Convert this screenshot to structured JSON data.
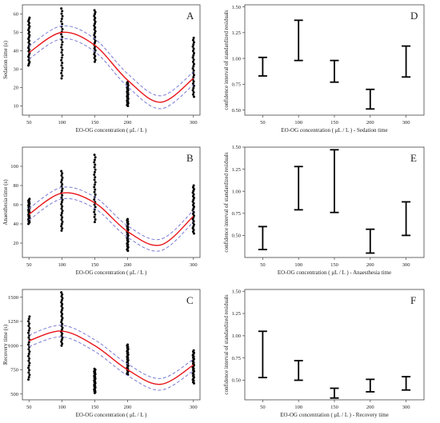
{
  "colors": {
    "fit": "#e8141b",
    "ci": "#7b7bd6",
    "points": "#000000",
    "interval": "#000000"
  },
  "chart_data": [
    {
      "type": "scatter",
      "panel_label": "A",
      "xlabel": "EO-OG concentration ( μL / L )",
      "ylabel": "Sedation time (s)",
      "xticks": [
        "50",
        "100",
        "150",
        "200",
        "300"
      ],
      "x_values": [
        50,
        100,
        150,
        200,
        300
      ],
      "xlim": [
        40,
        310
      ],
      "yticks": [
        10,
        20,
        30,
        40,
        50,
        60
      ],
      "ylim": [
        5,
        65
      ],
      "points": [
        {
          "x": 50,
          "min": 32,
          "max": 58
        },
        {
          "x": 100,
          "min": 25,
          "max": 63
        },
        {
          "x": 150,
          "min": 34,
          "max": 62
        },
        {
          "x": 200,
          "min": 10,
          "max": 23
        },
        {
          "x": 300,
          "min": 15,
          "max": 47
        }
      ],
      "fit_curve": {
        "x": [
          50,
          100,
          150,
          200,
          250,
          300
        ],
        "y": [
          39,
          50,
          43,
          24,
          12,
          25
        ]
      },
      "ci_halfwidth": 3.5
    },
    {
      "type": "scatter",
      "panel_label": "B",
      "xlabel": "EO-OG concentration ( μL / L )",
      "ylabel": "Anaesthesia time (s)",
      "xticks": [
        "50",
        "100",
        "150",
        "200",
        "300"
      ],
      "x_values": [
        50,
        100,
        150,
        200,
        300
      ],
      "xlim": [
        40,
        310
      ],
      "yticks": [
        20,
        40,
        60,
        80,
        100
      ],
      "ylim": [
        5,
        120
      ],
      "points": [
        {
          "x": 50,
          "min": 40,
          "max": 66
        },
        {
          "x": 100,
          "min": 33,
          "max": 95
        },
        {
          "x": 150,
          "min": 42,
          "max": 112
        },
        {
          "x": 200,
          "min": 12,
          "max": 45
        },
        {
          "x": 300,
          "min": 30,
          "max": 80
        }
      ],
      "fit_curve": {
        "x": [
          50,
          100,
          150,
          200,
          250,
          300
        ],
        "y": [
          50,
          72,
          62,
          32,
          18,
          48
        ]
      },
      "ci_halfwidth": 6
    },
    {
      "type": "scatter",
      "panel_label": "C",
      "xlabel": "EO-OG concentration ( μL / L )",
      "ylabel": "Recovery time (s)",
      "xticks": [
        "50",
        "100",
        "150",
        "200",
        "300"
      ],
      "x_values": [
        50,
        100,
        150,
        200,
        300
      ],
      "xlim": [
        40,
        310
      ],
      "yticks": [
        500,
        750,
        1000,
        1250,
        1500
      ],
      "ylim": [
        440,
        1580
      ],
      "points": [
        {
          "x": 50,
          "min": 650,
          "max": 1300
        },
        {
          "x": 100,
          "min": 1000,
          "max": 1550
        },
        {
          "x": 150,
          "min": 510,
          "max": 760
        },
        {
          "x": 200,
          "min": 700,
          "max": 1010
        },
        {
          "x": 300,
          "min": 610,
          "max": 950
        }
      ],
      "fit_curve": {
        "x": [
          50,
          100,
          150,
          200,
          250,
          300
        ],
        "y": [
          1050,
          1150,
          1000,
          750,
          600,
          800
        ]
      },
      "ci_halfwidth": 60
    },
    {
      "type": "interval",
      "panel_label": "D",
      "xlabel": "EO-OG concentration ( μL / L ) - Sedation time",
      "ylabel": "confidence interval of standardized residuals",
      "xticks": [
        "50",
        "100",
        "150",
        "200",
        "300"
      ],
      "yticks": [
        "0.50",
        "0.75",
        "1.00",
        "1.25",
        "1.50"
      ],
      "ylim": [
        0.45,
        1.52
      ],
      "intervals": [
        {
          "x": "50",
          "low": 0.83,
          "high": 1.01
        },
        {
          "x": "100",
          "low": 0.98,
          "high": 1.37
        },
        {
          "x": "150",
          "low": 0.77,
          "high": 0.98
        },
        {
          "x": "200",
          "low": 0.51,
          "high": 0.7
        },
        {
          "x": "300",
          "low": 0.82,
          "high": 1.12
        }
      ]
    },
    {
      "type": "interval",
      "panel_label": "E",
      "xlabel": "EO-OG concentration ( μL / L ) - Anaesthesia time",
      "ylabel": "confidence interval of standardized residuals",
      "xticks": [
        "50",
        "100",
        "150",
        "200",
        "300"
      ],
      "yticks": [
        "0.50",
        "0.75",
        "1.00",
        "1.25",
        "1.50"
      ],
      "ylim": [
        0.25,
        1.5
      ],
      "intervals": [
        {
          "x": "50",
          "low": 0.34,
          "high": 0.6
        },
        {
          "x": "100",
          "low": 0.79,
          "high": 1.28
        },
        {
          "x": "150",
          "low": 0.76,
          "high": 1.47
        },
        {
          "x": "200",
          "low": 0.3,
          "high": 0.57
        },
        {
          "x": "300",
          "low": 0.5,
          "high": 0.88
        }
      ]
    },
    {
      "type": "interval",
      "panel_label": "F",
      "xlabel": "EO-OG concentration ( μL / L ) - Recovery time",
      "ylabel": "confidence interval of standardized residuals",
      "xticks": [
        "50",
        "100",
        "150",
        "200",
        "300"
      ],
      "yticks": [
        "0.50",
        "0.75",
        "1.00",
        "1.25",
        "1.50"
      ],
      "ylim": [
        0.28,
        1.52
      ],
      "intervals": [
        {
          "x": "50",
          "low": 0.53,
          "high": 1.05
        },
        {
          "x": "100",
          "low": 0.5,
          "high": 0.72
        },
        {
          "x": "150",
          "low": 0.3,
          "high": 0.41
        },
        {
          "x": "200",
          "low": 0.37,
          "high": 0.51
        },
        {
          "x": "300",
          "low": 0.39,
          "high": 0.54
        }
      ]
    }
  ]
}
